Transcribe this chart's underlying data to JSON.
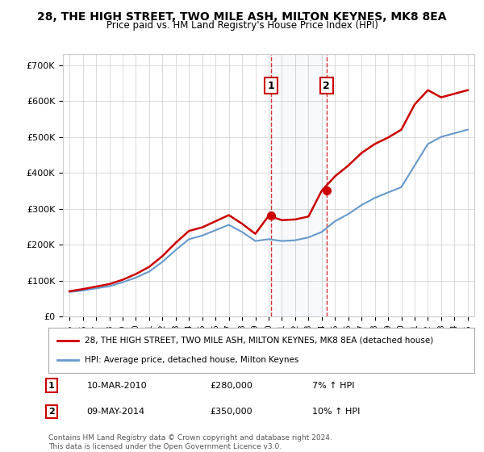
{
  "title": "28, THE HIGH STREET, TWO MILE ASH, MILTON KEYNES, MK8 8EA",
  "subtitle": "Price paid vs. HM Land Registry's House Price Index (HPI)",
  "hpi_label": "HPI: Average price, detached house, Milton Keynes",
  "property_label": "28, THE HIGH STREET, TWO MILE ASH, MILTON KEYNES, MK8 8EA (detached house)",
  "footnote1": "Contains HM Land Registry data © Crown copyright and database right 2024.",
  "footnote2": "This data is licensed under the Open Government Licence v3.0.",
  "transaction1": {
    "num": "1",
    "date": "10-MAR-2010",
    "price": "£280,000",
    "hpi": "7% ↑ HPI"
  },
  "transaction2": {
    "num": "2",
    "date": "09-MAY-2014",
    "price": "£350,000",
    "hpi": "10% ↑ HPI"
  },
  "t1_x": 2010.19,
  "t2_x": 2014.36,
  "t1_y": 280000,
  "t2_y": 350000,
  "ylim": [
    0,
    730000
  ],
  "xlim": [
    1994.5,
    2025.5
  ],
  "hpi_color": "#6699cc",
  "property_color": "#cc0000",
  "vline_color": "#cc0000",
  "background_color": "#ffffff",
  "plot_bg_color": "#ffffff",
  "grid_color": "#cccccc",
  "years": [
    1995,
    1996,
    1997,
    1998,
    1999,
    2000,
    2001,
    2002,
    2003,
    2004,
    2005,
    2006,
    2007,
    2008,
    2009,
    2010,
    2011,
    2012,
    2013,
    2014,
    2015,
    2016,
    2017,
    2018,
    2019,
    2020,
    2021,
    2022,
    2023,
    2024,
    2025
  ],
  "hpi_values": [
    68000,
    72000,
    78000,
    84000,
    95000,
    108000,
    125000,
    152000,
    185000,
    215000,
    225000,
    240000,
    255000,
    235000,
    210000,
    215000,
    210000,
    212000,
    220000,
    235000,
    265000,
    285000,
    310000,
    330000,
    345000,
    360000,
    420000,
    480000,
    500000,
    510000,
    520000
  ],
  "property_values_x": [
    1995,
    1996,
    1997,
    1998,
    1999,
    2000,
    2001,
    2002,
    2003,
    2004,
    2005,
    2006,
    2007,
    2008,
    2009,
    2010,
    2011,
    2012,
    2013,
    2014,
    2015,
    2016,
    2017,
    2018,
    2019,
    2020,
    2021,
    2022,
    2023,
    2024,
    2025
  ],
  "property_values_y": [
    70000,
    76000,
    83000,
    90000,
    102000,
    118000,
    138000,
    168000,
    205000,
    238000,
    248000,
    265000,
    282000,
    258000,
    230000,
    280000,
    268000,
    270000,
    278000,
    350000,
    390000,
    420000,
    455000,
    480000,
    498000,
    520000,
    590000,
    630000,
    610000,
    620000,
    630000
  ]
}
